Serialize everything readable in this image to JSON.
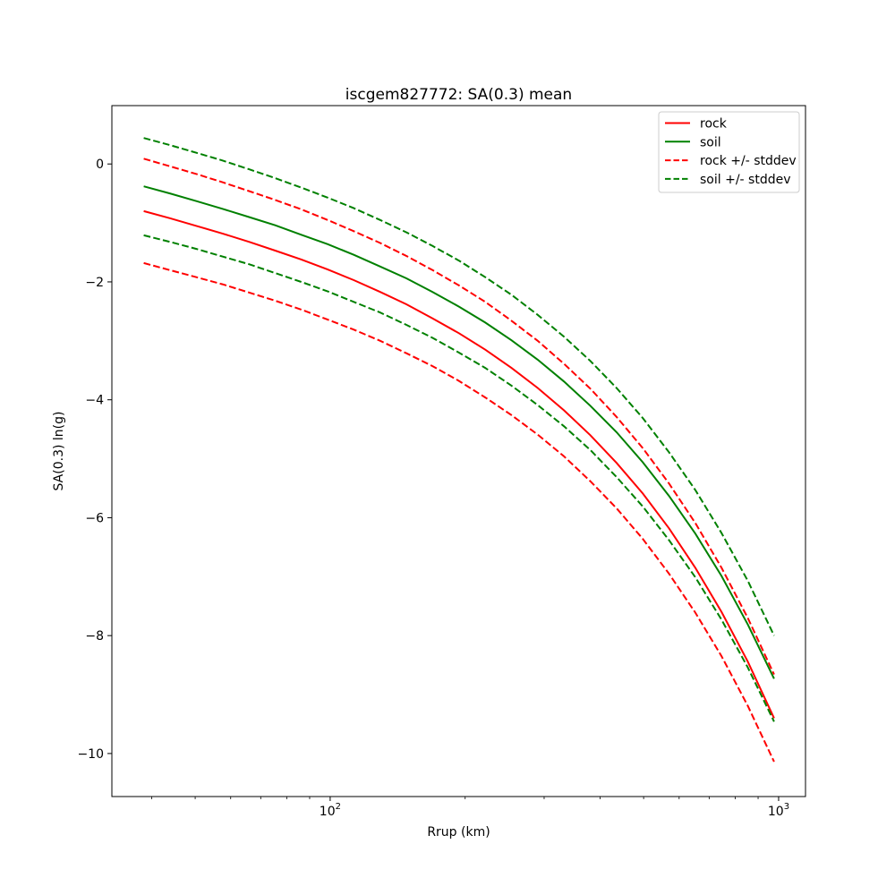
{
  "chart_data": {
    "type": "line",
    "title": "iscgem827772: SA(0.3) mean",
    "xlabel": "Rrup (km)",
    "ylabel": "SA(0.3) ln(g)",
    "xscale": "log",
    "grid": false,
    "background": "#ffffff",
    "xlim": [
      32.6,
      1148
    ],
    "ylim": [
      -10.73,
      0.99
    ],
    "x_major_ticks": [
      {
        "value": 100,
        "base": "10",
        "exp": "2"
      },
      {
        "value": 1000,
        "base": "10",
        "exp": "3"
      }
    ],
    "x_minor_ticks": [
      40,
      50,
      60,
      70,
      80,
      90,
      200,
      300,
      400,
      500,
      600,
      700,
      800,
      900
    ],
    "y_ticks": [
      {
        "value": 0,
        "label": "0"
      },
      {
        "value": -2,
        "label": "−2"
      },
      {
        "value": -4,
        "label": "−4"
      },
      {
        "value": -6,
        "label": "−6"
      },
      {
        "value": -8,
        "label": "−8"
      },
      {
        "value": -10,
        "label": "−10"
      }
    ],
    "x": [
      38.4,
      43.9,
      50.3,
      57.5,
      65.9,
      75.4,
      86.2,
      98.7,
      112.9,
      129.3,
      147.9,
      169.2,
      193.7,
      221.7,
      253.7,
      290.3,
      332.3,
      380.1,
      435.1,
      497.9,
      569.6,
      651.9,
      745.9,
      853.6,
      976.9
    ],
    "series": [
      {
        "name": "rock mean",
        "color": "#ff0000",
        "dash": "solid",
        "values": [
          -0.8,
          -0.92,
          -1.05,
          -1.18,
          -1.32,
          -1.47,
          -1.62,
          -1.79,
          -1.97,
          -2.17,
          -2.38,
          -2.62,
          -2.87,
          -3.15,
          -3.46,
          -3.8,
          -4.18,
          -4.6,
          -5.07,
          -5.59,
          -6.18,
          -6.85,
          -7.6,
          -8.44,
          -9.4
        ]
      },
      {
        "name": "soil mean",
        "color": "#008000",
        "dash": "solid",
        "values": [
          -0.38,
          -0.5,
          -0.63,
          -0.76,
          -0.9,
          -1.04,
          -1.2,
          -1.36,
          -1.54,
          -1.74,
          -1.94,
          -2.17,
          -2.42,
          -2.69,
          -2.99,
          -3.32,
          -3.69,
          -4.1,
          -4.55,
          -5.06,
          -5.63,
          -6.27,
          -6.99,
          -7.81,
          -8.73
        ]
      },
      {
        "name": "rock plus stddev",
        "color": "#ff0000",
        "dash": "dashed",
        "values": [
          0.09,
          -0.04,
          -0.17,
          -0.31,
          -0.46,
          -0.61,
          -0.77,
          -0.95,
          -1.14,
          -1.34,
          -1.56,
          -1.8,
          -2.06,
          -2.34,
          -2.66,
          -3.0,
          -3.39,
          -3.81,
          -4.29,
          -4.82,
          -5.42,
          -6.09,
          -6.85,
          -7.7,
          -8.66
        ]
      },
      {
        "name": "rock minus stddev",
        "color": "#ff0000",
        "dash": "dashed",
        "values": [
          -1.68,
          -1.8,
          -1.92,
          -2.04,
          -2.18,
          -2.32,
          -2.47,
          -2.64,
          -2.81,
          -3.0,
          -3.21,
          -3.43,
          -3.68,
          -3.96,
          -4.26,
          -4.59,
          -4.96,
          -5.38,
          -5.84,
          -6.36,
          -6.95,
          -7.61,
          -8.35,
          -9.19,
          -10.14
        ]
      },
      {
        "name": "soil plus stddev",
        "color": "#008000",
        "dash": "dashed",
        "values": [
          0.44,
          0.32,
          0.19,
          0.06,
          -0.09,
          -0.24,
          -0.4,
          -0.57,
          -0.75,
          -0.95,
          -1.16,
          -1.39,
          -1.64,
          -1.92,
          -2.22,
          -2.56,
          -2.93,
          -3.34,
          -3.8,
          -4.31,
          -4.89,
          -5.53,
          -6.26,
          -7.07,
          -8.0
        ]
      },
      {
        "name": "soil minus stddev",
        "color": "#008000",
        "dash": "dashed",
        "values": [
          -1.21,
          -1.32,
          -1.44,
          -1.57,
          -1.7,
          -1.85,
          -2.0,
          -2.16,
          -2.34,
          -2.52,
          -2.73,
          -2.95,
          -3.2,
          -3.46,
          -3.76,
          -4.09,
          -4.45,
          -4.85,
          -5.31,
          -5.81,
          -6.38,
          -7.01,
          -7.73,
          -8.54,
          -9.46
        ]
      }
    ],
    "legend": {
      "position": "upper right",
      "entries": [
        {
          "label": "rock",
          "color": "#ff0000",
          "dash": "solid"
        },
        {
          "label": "soil",
          "color": "#008000",
          "dash": "solid"
        },
        {
          "label": "rock +/- stddev",
          "color": "#ff0000",
          "dash": "dashed"
        },
        {
          "label": "soil +/- stddev",
          "color": "#008000",
          "dash": "dashed"
        }
      ]
    }
  }
}
